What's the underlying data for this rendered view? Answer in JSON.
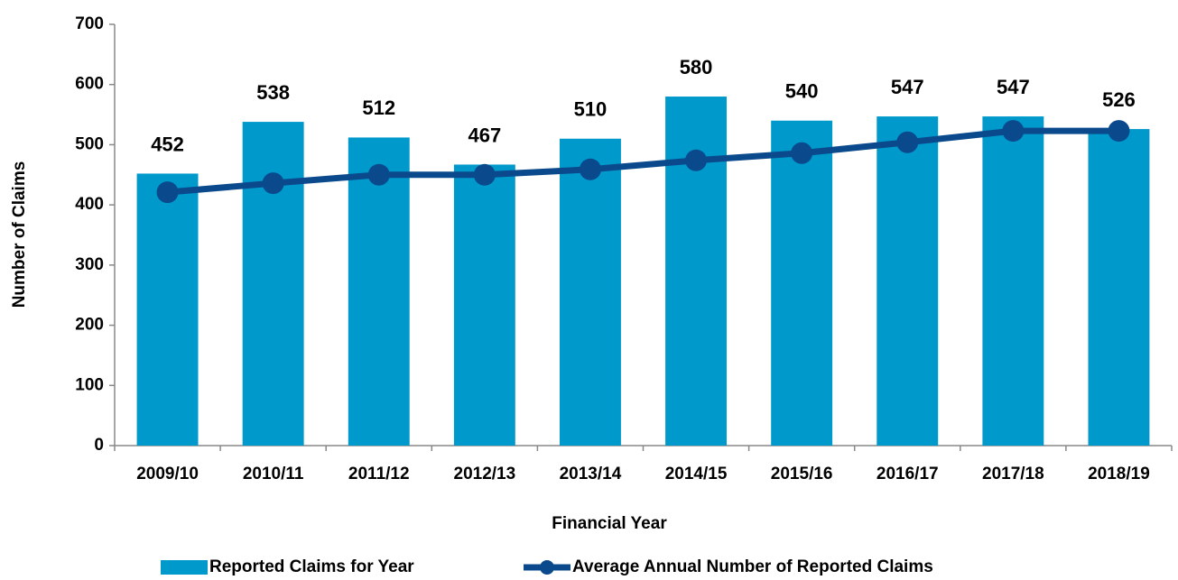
{
  "chart_data": {
    "type": "bar",
    "x_label": "Financial Year",
    "y_label": "Number of Claims",
    "categories": [
      "2009/10",
      "2010/11",
      "2011/12",
      "2012/13",
      "2013/14",
      "2014/15",
      "2015/16",
      "2016/17",
      "2017/18",
      "2018/19"
    ],
    "series": [
      {
        "name": "Reported Claims for Year",
        "type": "bar",
        "color": "#0099cc",
        "values": [
          452,
          538,
          512,
          467,
          510,
          580,
          540,
          547,
          547,
          526
        ]
      },
      {
        "name": "Average Annual Number of Reported Claims",
        "type": "line",
        "color": "#0a4a8c",
        "values": [
          421,
          436,
          450,
          450,
          459,
          474,
          486,
          504,
          523,
          523
        ]
      }
    ],
    "ylim": [
      0,
      700
    ],
    "yticks": [
      0,
      100,
      200,
      300,
      400,
      500,
      600,
      700
    ],
    "grid": false
  }
}
